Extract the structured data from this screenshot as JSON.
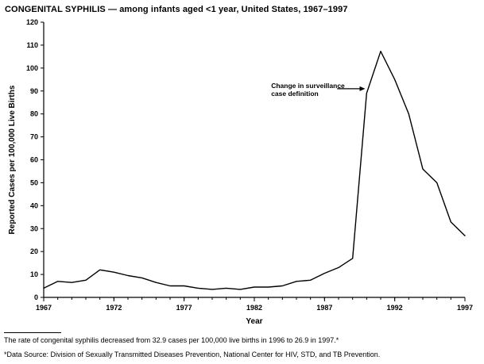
{
  "page": {
    "title": "CONGENITAL SYPHILIS — among infants aged <1 year, United States, 1967–1997",
    "footnote_rate": "The rate of congenital syphilis decreased from 32.9 cases per 100,000 live births in 1996 to 26.9 in 1997.*",
    "footnote_source": "*Data Source: Division of Sexually Transmitted Diseases Prevention, National Center for HIV, STD, and TB Prevention."
  },
  "chart_data": {
    "type": "line",
    "title": "CONGENITAL SYPHILIS — among infants aged <1 year, United States, 1967–1997",
    "xlabel": "Year",
    "ylabel": "Reported Cases per 100,000 Live Births",
    "ylim": [
      0,
      120
    ],
    "ytick_step": 10,
    "xticks": [
      1967,
      1972,
      1977,
      1982,
      1987,
      1992,
      1997
    ],
    "x": [
      1967,
      1968,
      1969,
      1970,
      1971,
      1972,
      1973,
      1974,
      1975,
      1976,
      1977,
      1978,
      1979,
      1980,
      1981,
      1982,
      1983,
      1984,
      1985,
      1986,
      1987,
      1988,
      1989,
      1990,
      1991,
      1992,
      1993,
      1994,
      1995,
      1996,
      1997
    ],
    "values": [
      4,
      7,
      6.5,
      7.5,
      12,
      11,
      9.5,
      8.5,
      6.5,
      5,
      5,
      4,
      3.5,
      4,
      3.5,
      4.5,
      4.5,
      5,
      7,
      7.5,
      10.5,
      13,
      17,
      89,
      107.3,
      95,
      80,
      56,
      50,
      32.9,
      26.9
    ],
    "line_color": "#000000",
    "grid": false,
    "annotation": {
      "lines": [
        "Change in surveillance",
        "case definition"
      ],
      "text_year": 1983.2,
      "value": 91,
      "arrow_start_year": 1987.9,
      "arrow_end_year": 1989.5
    }
  }
}
